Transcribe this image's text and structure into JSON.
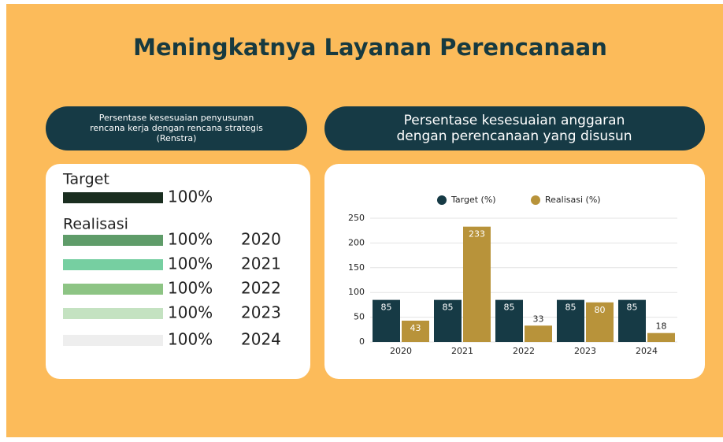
{
  "header": {
    "title": "Meningkatnya Layanan Perencanaan"
  },
  "left_panel": {
    "heading": [
      "Persentase kesesuaian penyusunan",
      "rencana kerja dengan rencana strategis",
      "(Renstra)"
    ],
    "target": {
      "label": "Target",
      "value": "100%",
      "color": "#1a2e20"
    },
    "realisasi": {
      "label": "Realisasi",
      "items": [
        {
          "value": "100%",
          "year": "2020",
          "color": "#5f9c69"
        },
        {
          "value": "100%",
          "year": "2021",
          "color": "#76cfa1"
        },
        {
          "value": "100%",
          "year": "2022",
          "color": "#8dc484"
        },
        {
          "value": "100%",
          "year": "2023",
          "color": "#c4e2c1"
        },
        {
          "value": "100%",
          "year": "2024",
          "color": "#eeeeee"
        }
      ]
    }
  },
  "right_panel": {
    "heading": [
      "Persentase kesesuaian anggaran",
      "dengan perencanaan yang disusun"
    ]
  },
  "chart_data": {
    "type": "bar",
    "categories": [
      "2020",
      "2021",
      "2022",
      "2023",
      "2024"
    ],
    "series": [
      {
        "name": "Target (%)",
        "color": "#163a45",
        "values": [
          85,
          85,
          85,
          85,
          85
        ]
      },
      {
        "name": "Realisasi (%)",
        "color": "#b8933a",
        "values": [
          43,
          233,
          33,
          80,
          18
        ]
      }
    ],
    "ylim": [
      0,
      250
    ],
    "yticks": [
      0,
      50,
      100,
      150,
      200,
      250
    ],
    "grid": true,
    "legend": "top"
  }
}
